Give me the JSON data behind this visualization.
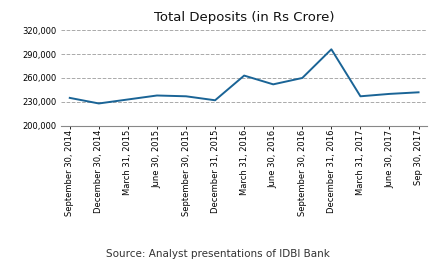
{
  "title": "Total Deposits (in Rs Crore)",
  "source_text": "Source: Analyst presentations of IDBI Bank",
  "categories": [
    "September 30, 2014",
    "December 30, 2014",
    "March 31, 2015",
    "June 30, 2015",
    "September 30, 2015",
    "December 31, 2015",
    "March 31, 2016",
    "June 30, 2016",
    "September 30, 2016",
    "December 31, 2016",
    "March 31, 2017",
    "June 30, 2017",
    "Sep 30, 2017"
  ],
  "values": [
    235000,
    228000,
    233000,
    238000,
    237000,
    232000,
    263000,
    252000,
    260000,
    296000,
    237000,
    240000,
    242000
  ],
  "line_color": "#1a6496",
  "line_width": 1.4,
  "ylim": [
    200000,
    325000
  ],
  "yticks": [
    200000,
    230000,
    260000,
    290000,
    320000
  ],
  "bg_color": "#ffffff",
  "grid_color": "#aaaaaa",
  "title_fontsize": 9.5,
  "tick_fontsize": 6.0,
  "source_fontsize": 7.5
}
